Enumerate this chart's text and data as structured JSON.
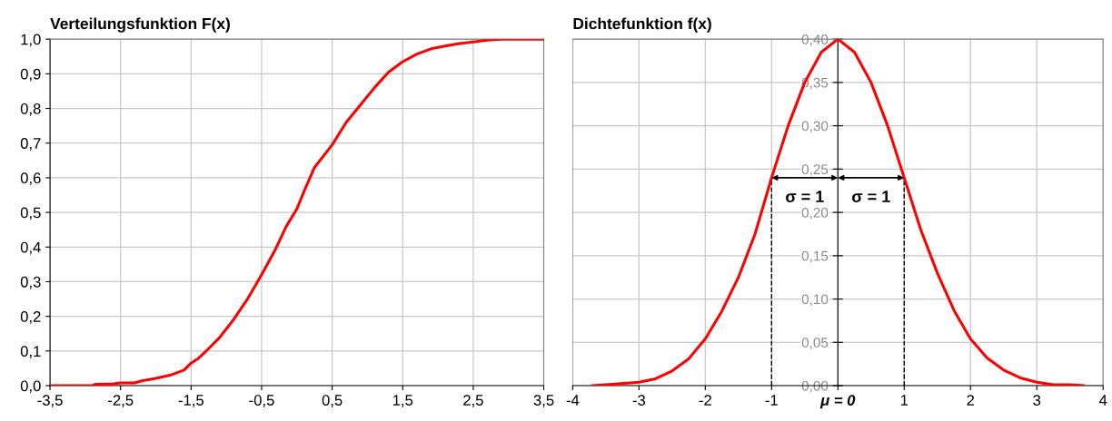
{
  "chart_data": [
    {
      "type": "line",
      "title": "Verteilungsfunktion F(x)",
      "x": [
        -3.5,
        -2.9,
        -2.85,
        -2.6,
        -2.5,
        -2.3,
        -2.2,
        -2.0,
        -1.8,
        -1.6,
        -1.5,
        -1.4,
        -1.3,
        -1.1,
        -0.9,
        -0.7,
        -0.5,
        -0.3,
        -0.15,
        0.0,
        0.1,
        0.25,
        0.5,
        0.7,
        0.9,
        1.1,
        1.3,
        1.5,
        1.7,
        1.9,
        2.1,
        2.3,
        2.5,
        2.7,
        2.9,
        3.5
      ],
      "series": [
        {
          "color": "#ff0000",
          "values": [
            0,
            0,
            0.004,
            0.005,
            0.008,
            0.008,
            0.014,
            0.021,
            0.03,
            0.045,
            0.065,
            0.078,
            0.097,
            0.138,
            0.19,
            0.25,
            0.32,
            0.395,
            0.46,
            0.51,
            0.56,
            0.63,
            0.695,
            0.76,
            0.81,
            0.86,
            0.905,
            0.935,
            0.957,
            0.972,
            0.98,
            0.987,
            0.992,
            0.997,
            1.0,
            1.0
          ]
        }
      ],
      "xlim": [
        -3.5,
        3.5
      ],
      "xticks": [
        {
          "value": -3.5,
          "label": "-3,5"
        },
        {
          "value": -2.5,
          "label": "-2,5"
        },
        {
          "value": -1.5,
          "label": "-1,5"
        },
        {
          "value": -0.5,
          "label": "-0,5"
        },
        {
          "value": 0.5,
          "label": "0,5"
        },
        {
          "value": 1.5,
          "label": "1,5"
        },
        {
          "value": 2.5,
          "label": "2,5"
        },
        {
          "value": 3.5,
          "label": "3,5"
        }
      ],
      "ylim": [
        0,
        1
      ],
      "yticks": [
        {
          "value": 0,
          "label": "0,0"
        },
        {
          "value": 0.1,
          "label": "0,1"
        },
        {
          "value": 0.2,
          "label": "0,2"
        },
        {
          "value": 0.3,
          "label": "0,3"
        },
        {
          "value": 0.4,
          "label": "0,4"
        },
        {
          "value": 0.5,
          "label": "0,5"
        },
        {
          "value": 0.6,
          "label": "0,6"
        },
        {
          "value": 0.7,
          "label": "0,7"
        },
        {
          "value": 0.8,
          "label": "0,8"
        },
        {
          "value": 0.9,
          "label": "0,9"
        },
        {
          "value": 1,
          "label": "1,0"
        }
      ],
      "grid": true,
      "marker": "none",
      "line_style": "solid"
    },
    {
      "type": "line",
      "title": "Dichtefunktion f(x)",
      "x": [
        -3.7,
        -3.5,
        -3.0,
        -2.75,
        -2.5,
        -2.25,
        -2.0,
        -1.75,
        -1.5,
        -1.25,
        -1.0,
        -0.75,
        -0.5,
        -0.25,
        0,
        0.25,
        0.5,
        0.75,
        1.0,
        1.25,
        1.5,
        1.75,
        2.0,
        2.25,
        2.5,
        2.75,
        3.0,
        3.25,
        3.5,
        3.7
      ],
      "series": [
        {
          "color": "#ff0000",
          "values": [
            0,
            0.001,
            0.004,
            0.008,
            0.017,
            0.031,
            0.054,
            0.086,
            0.125,
            0.175,
            0.24,
            0.3,
            0.35,
            0.385,
            0.4,
            0.385,
            0.35,
            0.3,
            0.24,
            0.18,
            0.13,
            0.087,
            0.054,
            0.032,
            0.018,
            0.009,
            0.004,
            0.001,
            0.001,
            0
          ]
        }
      ],
      "xlim": [
        -4,
        4
      ],
      "xticks": [
        -4,
        -3,
        -2,
        -1,
        {
          "value": 0,
          "label": "μ = 0"
        },
        1,
        2,
        3,
        4
      ],
      "ylim": [
        0,
        0.4
      ],
      "yticks": [
        {
          "value": 0,
          "label": "0,00"
        },
        {
          "value": 0.05,
          "label": "0,05"
        },
        {
          "value": 0.1,
          "label": "0,10"
        },
        {
          "value": 0.15,
          "label": "0,15"
        },
        {
          "value": 0.2,
          "label": "0,20"
        },
        {
          "value": 0.25,
          "label": "0,25"
        },
        {
          "value": 0.3,
          "label": "0,30"
        },
        {
          "value": 0.35,
          "label": "0,35"
        },
        {
          "value": 0.4,
          "label": "0,40"
        }
      ],
      "ref_lines": [
        {
          "axis": "x",
          "value": -1,
          "color": "#000000",
          "line_style": "dashed"
        },
        {
          "axis": "x",
          "value": 1,
          "color": "#000000",
          "line_style": "dashed"
        }
      ],
      "annotations": [
        "σ = 1",
        "σ = 1"
      ],
      "grid": true,
      "marker": "none",
      "line_style": "solid"
    }
  ]
}
